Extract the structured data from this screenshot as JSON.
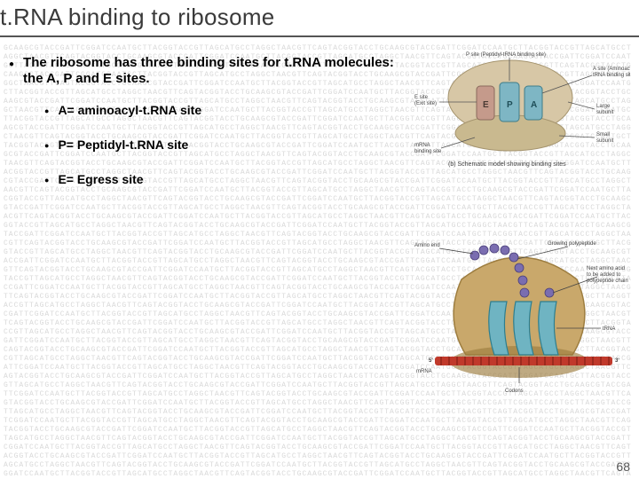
{
  "title": "t.RNA binding to ribosome",
  "main_bullet": "The ribosome has three binding sites for t.RNA molecules: the A, P and E sites.",
  "sub_bullets": {
    "a": "A= aminoacyl-t.RNA site",
    "p": "P= Peptidyl-t.RNA site",
    "e": "E= Egress site"
  },
  "page_number": "68",
  "figure_a": {
    "labels": {
      "p_site": "P site (Peptidyl-tRNA binding site)",
      "a_site": "A site (Aminoacyl-tRNA binding site)",
      "e_site": "E site (Exit site)",
      "large_subunit": "Large subunit",
      "small_subunit": "Small subunit",
      "mrna_binding": "mRNA binding site"
    },
    "caption": "(b) Schematic model showing binding sites",
    "colors": {
      "large_subunit": "#d7c7a6",
      "small_subunit": "#c9b98f",
      "e_fill": "#c59a8b",
      "p_fill": "#7eb6c4",
      "a_fill": "#7eb6c4",
      "leader_line": "#555555",
      "text": "#555555",
      "caption": "#555555"
    },
    "font_size_label": 6,
    "font_size_caption": 7
  },
  "figure_b": {
    "labels": {
      "amino_end": "Amino end",
      "growing_poly": "Growing polypeptide",
      "next_aa": "Next amino acid to be added to polypeptide chain",
      "trna": "tRNA",
      "mrna": "mRNA",
      "codons": "Codons",
      "five_prime": "5'",
      "three_prime": "3'"
    },
    "colors": {
      "ribosome_body": "#c9a86b",
      "ribosome_shadow": "#9d7d3f",
      "trna_fill": "#6fb4c2",
      "trna_stroke": "#2d7e8f",
      "mrna_strand": "#c0392b",
      "amino_acid": "#7a6db0",
      "leader_line": "#444444",
      "text": "#444444"
    },
    "font_size_label": 6
  },
  "bg_texture": {
    "color": "#d8d8d8",
    "font_size": 8,
    "seed": "GCAAGCGTACCGATTCGGATCCAATGCTTACGGTACCGTTAGCATGCCTAGGCTAACGTTCAGTACGGTACCT"
  }
}
